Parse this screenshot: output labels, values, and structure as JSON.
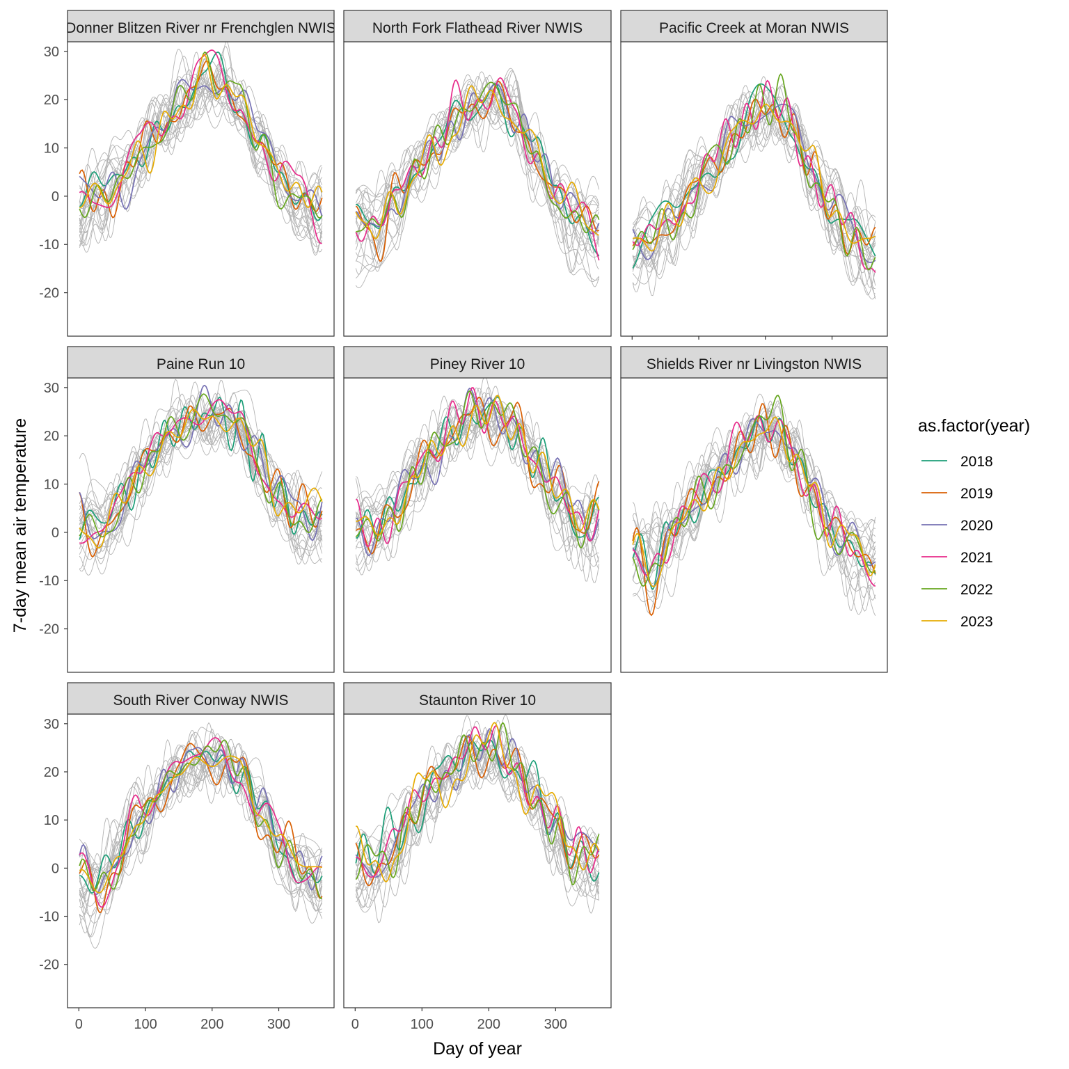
{
  "chart_data": {
    "type": "line",
    "layout": "faceted",
    "xlabel": "Day of year",
    "ylabel": "7-day mean air temperature",
    "xlim": [
      -17,
      383
    ],
    "ylim": [
      -29,
      32
    ],
    "x_ticks": [
      "0",
      "100",
      "200",
      "300"
    ],
    "x_tick_values": [
      0,
      100,
      200,
      300
    ],
    "y_ticks": [
      "30",
      "20",
      "10",
      "0",
      "-10",
      "-20"
    ],
    "y_tick_values": [
      30,
      20,
      10,
      0,
      -10,
      -20
    ],
    "grid": false,
    "legend": {
      "title": "as.factor(year)",
      "placement": "right",
      "entries": [
        {
          "label": "2018",
          "color": "#1B9E77"
        },
        {
          "label": "2019",
          "color": "#D95F02"
        },
        {
          "label": "2020",
          "color": "#7570B3"
        },
        {
          "label": "2021",
          "color": "#E7298A"
        },
        {
          "label": "2022",
          "color": "#66A61E"
        },
        {
          "label": "2023",
          "color": "#E6AB02"
        }
      ]
    },
    "background_series_color": "#B3B3B3",
    "days": [
      0,
      30,
      60,
      90,
      120,
      150,
      180,
      210,
      240,
      270,
      300,
      330,
      365
    ],
    "year_deviation": {
      "2018": [
        -1,
        3,
        1,
        -1,
        1,
        0,
        0,
        1,
        -1,
        1,
        0,
        -1,
        -2
      ],
      "2019": [
        0,
        -2,
        0,
        1,
        -1,
        1,
        0,
        -1,
        0,
        -2,
        1,
        0,
        1
      ],
      "2020": [
        1,
        0,
        -1,
        0,
        0,
        -1,
        1,
        0,
        1,
        1,
        1,
        1,
        0
      ],
      "2021": [
        0,
        -1,
        1,
        1,
        1,
        2,
        2,
        1,
        -1,
        0,
        1,
        0,
        -3
      ],
      "2022": [
        -2,
        1,
        -2,
        0,
        0,
        0,
        1,
        2,
        1,
        -1,
        -2,
        -1,
        -1
      ],
      "2023": [
        1,
        -1,
        0,
        0,
        -1,
        -1,
        0,
        0,
        0,
        1,
        0,
        1,
        1
      ]
    },
    "panels": [
      {
        "title": "Donner Blitzen River nr Frenchglen NWIS",
        "mean": [
          0,
          0,
          3,
          8,
          13,
          19,
          24,
          24,
          20,
          12,
          4,
          0,
          -2
        ],
        "gray_low": [
          -10,
          -8,
          -3,
          3,
          8,
          13,
          18,
          19,
          14,
          6,
          -2,
          -8,
          -12
        ],
        "gray_high": [
          5,
          8,
          12,
          16,
          20,
          25,
          27,
          27,
          24,
          17,
          10,
          6,
          5
        ]
      },
      {
        "title": "North Fork Flathead River NWIS",
        "mean": [
          -5,
          -8,
          0,
          5,
          10,
          15,
          19,
          21,
          17,
          8,
          0,
          -2,
          -8
        ],
        "gray_low": [
          -17,
          -20,
          -8,
          0,
          6,
          11,
          15,
          17,
          12,
          2,
          -8,
          -15,
          -20
        ],
        "gray_high": [
          2,
          3,
          6,
          10,
          15,
          19,
          22,
          23,
          21,
          14,
          5,
          3,
          2
        ]
      },
      {
        "title": "Pacific Creek at Moran NWIS",
        "mean": [
          -10,
          -8,
          -5,
          0,
          6,
          12,
          17,
          18,
          15,
          6,
          -3,
          -8,
          -12
        ],
        "gray_low": [
          -18,
          -18,
          -12,
          -5,
          2,
          8,
          13,
          14,
          10,
          0,
          -10,
          -18,
          -20
        ],
        "gray_high": [
          -3,
          -2,
          2,
          6,
          11,
          16,
          20,
          20,
          18,
          11,
          4,
          0,
          -3
        ]
      },
      {
        "title": "Paine Run 10",
        "mean": [
          2,
          0,
          5,
          12,
          18,
          22,
          24,
          24,
          22,
          15,
          8,
          3,
          5
        ],
        "gray_low": [
          -8,
          -8,
          -2,
          6,
          13,
          18,
          21,
          21,
          17,
          10,
          2,
          -5,
          -8
        ],
        "gray_high": [
          10,
          10,
          12,
          18,
          22,
          25,
          26,
          26,
          25,
          20,
          13,
          8,
          10
        ]
      },
      {
        "title": "Piney River 10",
        "mean": [
          2,
          0,
          4,
          12,
          17,
          22,
          24,
          24,
          22,
          15,
          8,
          3,
          5
        ],
        "gray_low": [
          -8,
          -8,
          -2,
          6,
          13,
          18,
          21,
          21,
          17,
          10,
          2,
          -5,
          -8
        ],
        "gray_high": [
          10,
          10,
          12,
          18,
          22,
          25,
          26,
          26,
          25,
          20,
          13,
          8,
          10
        ]
      },
      {
        "title": "Shields River nr Livingston NWIS",
        "mean": [
          -2,
          -10,
          0,
          5,
          10,
          15,
          20,
          22,
          17,
          8,
          0,
          -2,
          -8
        ],
        "gray_low": [
          -15,
          -20,
          -10,
          -2,
          6,
          11,
          15,
          17,
          12,
          2,
          -8,
          -15,
          -20
        ],
        "gray_high": [
          3,
          3,
          5,
          10,
          15,
          19,
          22,
          23,
          21,
          14,
          5,
          3,
          3
        ]
      },
      {
        "title": "South River Conway NWIS",
        "mean": [
          0,
          -5,
          2,
          10,
          16,
          20,
          23,
          23,
          20,
          13,
          5,
          0,
          0
        ],
        "gray_low": [
          -15,
          -15,
          -5,
          3,
          10,
          16,
          19,
          19,
          16,
          8,
          -2,
          -8,
          -12
        ],
        "gray_high": [
          5,
          5,
          10,
          16,
          20,
          23,
          25,
          25,
          23,
          17,
          10,
          5,
          4
        ]
      },
      {
        "title": "Staunton River 10",
        "mean": [
          3,
          1,
          5,
          12,
          18,
          22,
          24,
          24,
          22,
          15,
          8,
          3,
          5
        ],
        "gray_low": [
          -8,
          -8,
          -2,
          6,
          13,
          18,
          21,
          21,
          17,
          10,
          2,
          -5,
          -8
        ],
        "gray_high": [
          10,
          10,
          12,
          18,
          22,
          25,
          26,
          26,
          25,
          20,
          13,
          8,
          10
        ]
      }
    ]
  }
}
